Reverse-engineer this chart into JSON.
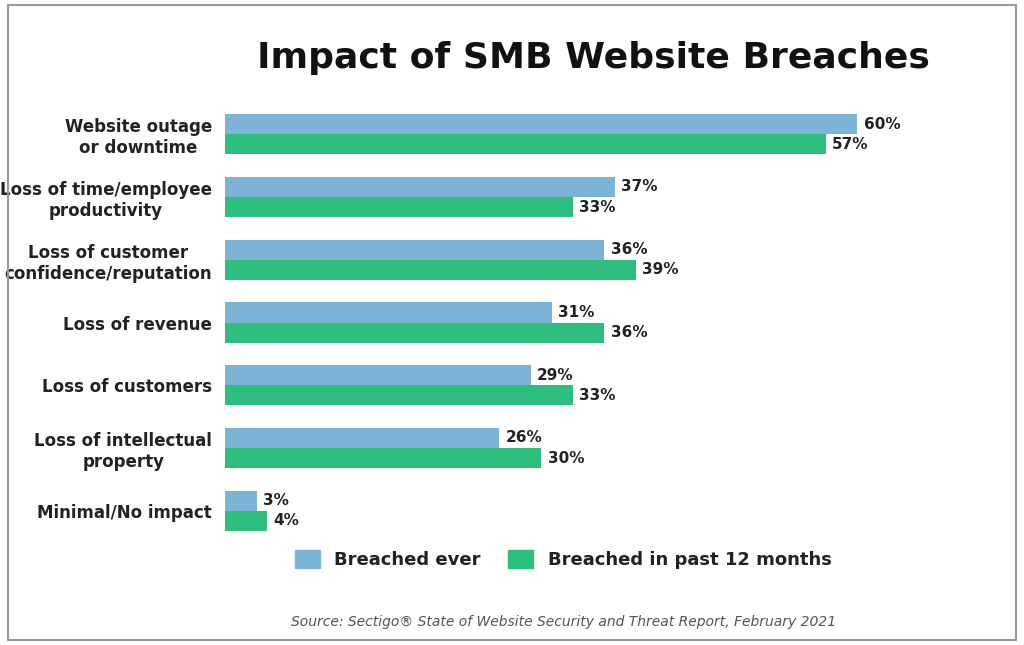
{
  "title": "Impact of SMB Website Breaches",
  "categories": [
    "Website outage\nor downtime",
    "Loss of time/employee\nproductivity",
    "Loss of customer\nconfidence/reputation",
    "Loss of revenue",
    "Loss of customers",
    "Loss of intellectual\nproperty",
    "Minimal/No impact"
  ],
  "breached_ever": [
    60,
    37,
    36,
    31,
    29,
    26,
    3
  ],
  "breached_12mo": [
    57,
    33,
    39,
    36,
    33,
    30,
    4
  ],
  "color_ever": "#7EB3D8",
  "color_12mo": "#2EBF7E",
  "bar_height": 0.32,
  "xlim": [
    0,
    70
  ],
  "source_text": "Source: Sectigo® State of Website Security and Threat Report, February 2021",
  "legend_ever": "Breached ever",
  "legend_12mo": "Breached in past 12 months",
  "background_color": "#FFFFFF",
  "title_fontsize": 26,
  "label_fontsize": 12,
  "value_fontsize": 11,
  "source_fontsize": 10,
  "legend_fontsize": 13
}
